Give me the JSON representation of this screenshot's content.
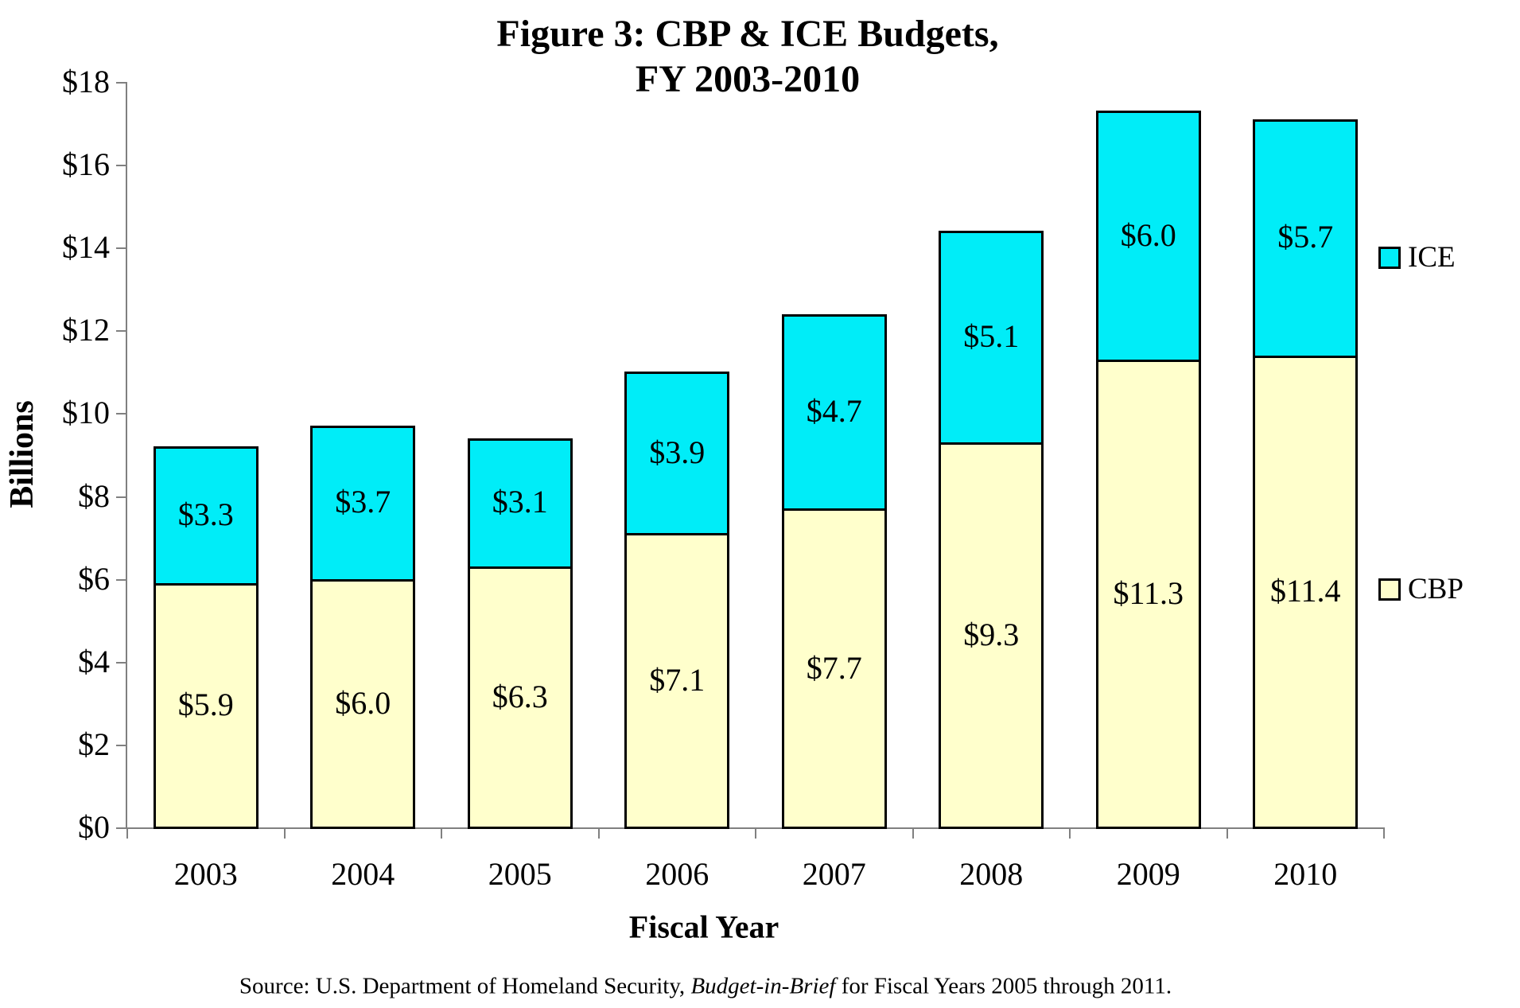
{
  "title": {
    "line1": "Figure 3: CBP & ICE Budgets,",
    "line2": "FY 2003-2010"
  },
  "axes": {
    "y_title": "Billions",
    "x_title": "Fiscal Year"
  },
  "legend": {
    "items": [
      {
        "label": "ICE",
        "series": "ICE"
      },
      {
        "label": "CBP",
        "series": "CBP"
      }
    ]
  },
  "source": {
    "prefix": "Source: U.S. Department of Homeland Security, ",
    "italic": "Budget-in-Brief",
    "suffix": " for Fiscal Years 2005 through 2011."
  },
  "chart_data": {
    "type": "bar",
    "stacked": true,
    "title": "Figure 3: CBP & ICE Budgets, FY 2003-2010",
    "xlabel": "Fiscal Year",
    "ylabel": "Billions",
    "categories": [
      "2003",
      "2004",
      "2005",
      "2006",
      "2007",
      "2008",
      "2009",
      "2010"
    ],
    "series": [
      {
        "name": "CBP",
        "color": "#FFFFCC",
        "values": [
          5.9,
          6.0,
          6.3,
          7.1,
          7.7,
          9.3,
          11.3,
          11.4
        ],
        "labels": [
          "$5.9",
          "$6.0",
          "$6.3",
          "$7.1",
          "$7.7",
          "$9.3",
          "$11.3",
          "$11.4"
        ]
      },
      {
        "name": "ICE",
        "color": "#00EDF8",
        "values": [
          3.3,
          3.7,
          3.1,
          3.9,
          4.7,
          5.1,
          6.0,
          5.7
        ],
        "labels": [
          "$3.3",
          "$3.7",
          "$3.1",
          "$3.9",
          "$4.7",
          "$5.1",
          "$6.0",
          "$5.7"
        ]
      }
    ],
    "totals": [
      9.2,
      9.7,
      9.4,
      11.0,
      12.4,
      14.4,
      17.3,
      17.1
    ],
    "ylim": [
      0,
      18
    ],
    "ytick_step": 2,
    "ytick_labels": [
      "$0",
      "$2",
      "$4",
      "$6",
      "$8",
      "$10",
      "$12",
      "$14",
      "$16",
      "$18"
    ],
    "grid": false,
    "legend_position": "right",
    "axis_color": "#808080",
    "bar_border_color": "#000000",
    "label_position": "center"
  }
}
